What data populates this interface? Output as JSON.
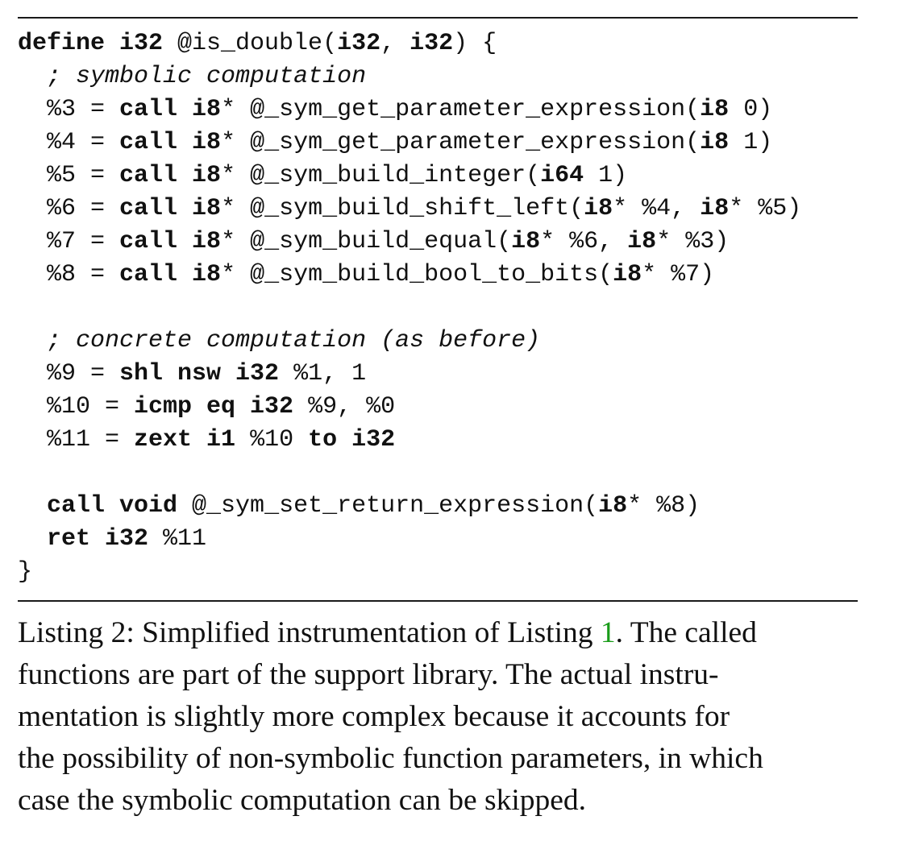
{
  "listing": {
    "lines": [
      [
        {
          "t": "define i32",
          "s": "b"
        },
        {
          "t": " @is_double("
        },
        {
          "t": "i32",
          "s": "b"
        },
        {
          "t": ", "
        },
        {
          "t": "i32",
          "s": "b"
        },
        {
          "t": ") {"
        }
      ],
      [
        {
          "t": "  "
        },
        {
          "t": "; symbolic computation",
          "s": "i"
        }
      ],
      [
        {
          "t": "  %3 = "
        },
        {
          "t": "call i8",
          "s": "b"
        },
        {
          "t": "* @_sym_get_parameter_expression("
        },
        {
          "t": "i8",
          "s": "b"
        },
        {
          "t": " 0)"
        }
      ],
      [
        {
          "t": "  %4 = "
        },
        {
          "t": "call i8",
          "s": "b"
        },
        {
          "t": "* @_sym_get_parameter_expression("
        },
        {
          "t": "i8",
          "s": "b"
        },
        {
          "t": " 1)"
        }
      ],
      [
        {
          "t": "  %5 = "
        },
        {
          "t": "call i8",
          "s": "b"
        },
        {
          "t": "* @_sym_build_integer("
        },
        {
          "t": "i64",
          "s": "b"
        },
        {
          "t": " 1)"
        }
      ],
      [
        {
          "t": "  %6 = "
        },
        {
          "t": "call i8",
          "s": "b"
        },
        {
          "t": "* @_sym_build_shift_left("
        },
        {
          "t": "i8",
          "s": "b"
        },
        {
          "t": "* %4, "
        },
        {
          "t": "i8",
          "s": "b"
        },
        {
          "t": "* %5)"
        }
      ],
      [
        {
          "t": "  %7 = "
        },
        {
          "t": "call i8",
          "s": "b"
        },
        {
          "t": "* @_sym_build_equal("
        },
        {
          "t": "i8",
          "s": "b"
        },
        {
          "t": "* %6, "
        },
        {
          "t": "i8",
          "s": "b"
        },
        {
          "t": "* %3)"
        }
      ],
      [
        {
          "t": "  %8 = "
        },
        {
          "t": "call i8",
          "s": "b"
        },
        {
          "t": "* @_sym_build_bool_to_bits("
        },
        {
          "t": "i8",
          "s": "b"
        },
        {
          "t": "* %7)"
        }
      ],
      [],
      [
        {
          "t": "  "
        },
        {
          "t": "; concrete computation (as before)",
          "s": "i"
        }
      ],
      [
        {
          "t": "  %9 = "
        },
        {
          "t": "shl nsw i32",
          "s": "b"
        },
        {
          "t": " %1, 1"
        }
      ],
      [
        {
          "t": "  %10 = "
        },
        {
          "t": "icmp eq i32",
          "s": "b"
        },
        {
          "t": " %9, %0"
        }
      ],
      [
        {
          "t": "  %11 = "
        },
        {
          "t": "zext i1",
          "s": "b"
        },
        {
          "t": " %10 "
        },
        {
          "t": "to i32",
          "s": "b"
        }
      ],
      [],
      [
        {
          "t": "  "
        },
        {
          "t": "call void",
          "s": "b"
        },
        {
          "t": " @_sym_set_return_expression("
        },
        {
          "t": "i8",
          "s": "b"
        },
        {
          "t": "* %8)"
        }
      ],
      [
        {
          "t": "  "
        },
        {
          "t": "ret i32",
          "s": "b"
        },
        {
          "t": " %11"
        }
      ],
      [
        {
          "t": "}"
        }
      ]
    ]
  },
  "caption": {
    "prefix": "Listing 2: Simplified instrumentation of Listing ",
    "ref": "1",
    "line1_rest": ". The called",
    "line2": "functions are part of the support library. The actual instru-",
    "line3": "mentation is slightly more complex because it accounts for",
    "line4": "the possibility of non-symbolic function parameters, in which",
    "line5": "case the symbolic computation can be skipped."
  },
  "colors": {
    "reference_link": "#1a9c1a"
  }
}
